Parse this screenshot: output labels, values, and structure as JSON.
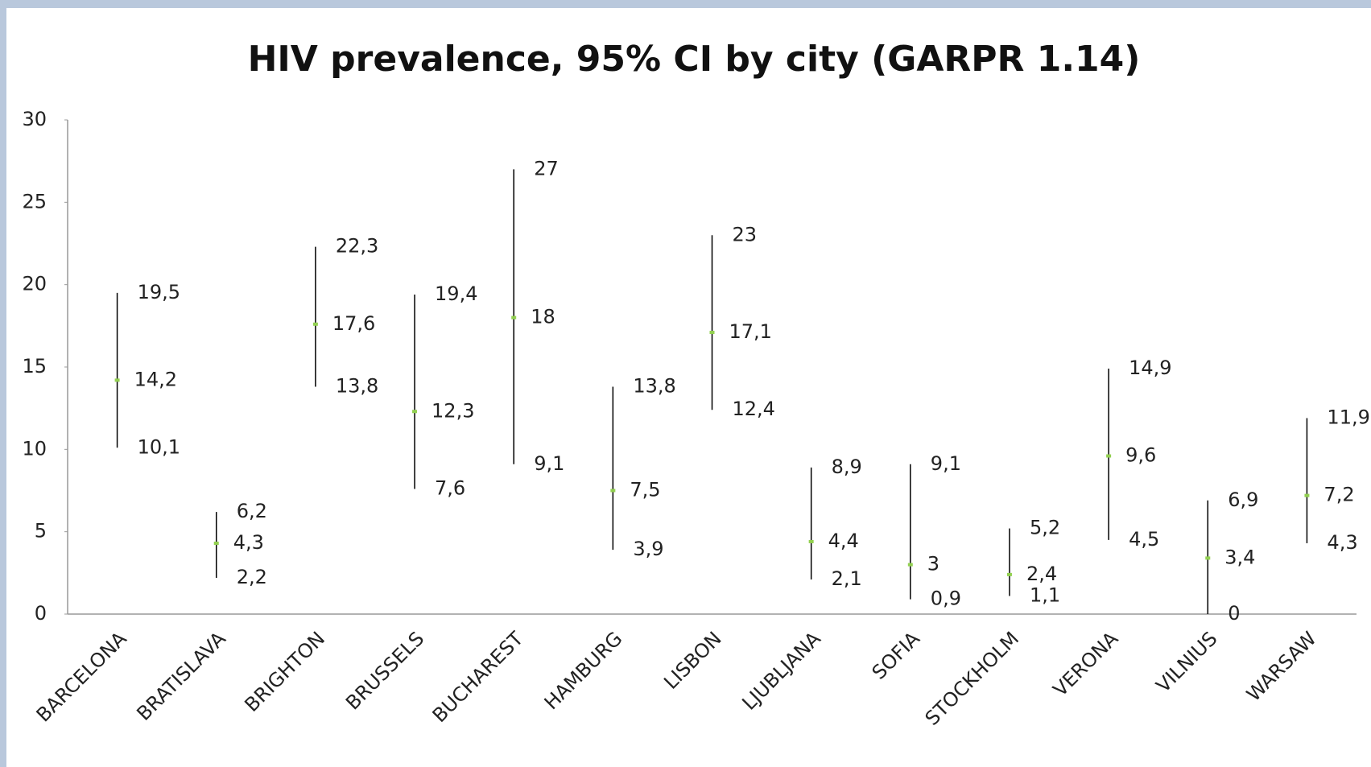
{
  "chart_data": {
    "type": "errorbar",
    "title": "HIV prevalence, 95% CI by city (GARPR 1.14)",
    "categories": [
      "BARCELONA",
      "BRATISLAVA",
      "BRIGHTON",
      "BRUSSELS",
      "BUCHAREST",
      "HAMBURG",
      "LISBON",
      "LJUBLJANA",
      "SOFIA",
      "STOCKHOLM",
      "VERONA",
      "VILNIUS",
      "WARSAW"
    ],
    "values": [
      14.2,
      4.3,
      17.6,
      12.3,
      18,
      7.5,
      17.1,
      4.4,
      3,
      2.4,
      9.6,
      3.4,
      7.2
    ],
    "value_labels": [
      "14,2",
      "4,3",
      "17,6",
      "12,3",
      "18",
      "7,5",
      "17,1",
      "4,4",
      "3",
      "2,4",
      "9,6",
      "3,4",
      "7,2"
    ],
    "lower": [
      10.1,
      2.2,
      13.8,
      7.6,
      9.1,
      3.9,
      12.4,
      2.1,
      0.9,
      1.1,
      4.5,
      0,
      4.3
    ],
    "lower_labels": [
      "10,1",
      "2,2",
      "13,8",
      "7,6",
      "9,1",
      "3,9",
      "12,4",
      "2,1",
      "0,9",
      "1,1",
      "4,5",
      "0",
      "4,3"
    ],
    "upper": [
      19.5,
      6.2,
      22.3,
      19.4,
      27,
      13.8,
      23,
      8.9,
      9.1,
      5.2,
      14.9,
      6.9,
      11.9
    ],
    "upper_labels": [
      "19,5",
      "6,2",
      "22,3",
      "19,4",
      "27",
      "13,8",
      "23",
      "8,9",
      "9,1",
      "5,2",
      "14,9",
      "6,9",
      "11,9"
    ],
    "ylim": [
      0,
      30
    ],
    "yticks": [
      0,
      5,
      10,
      15,
      20,
      25,
      30
    ],
    "marker_color": "#92d050",
    "estimate_label_color": "#ff0000",
    "bar_color": "#000000"
  }
}
